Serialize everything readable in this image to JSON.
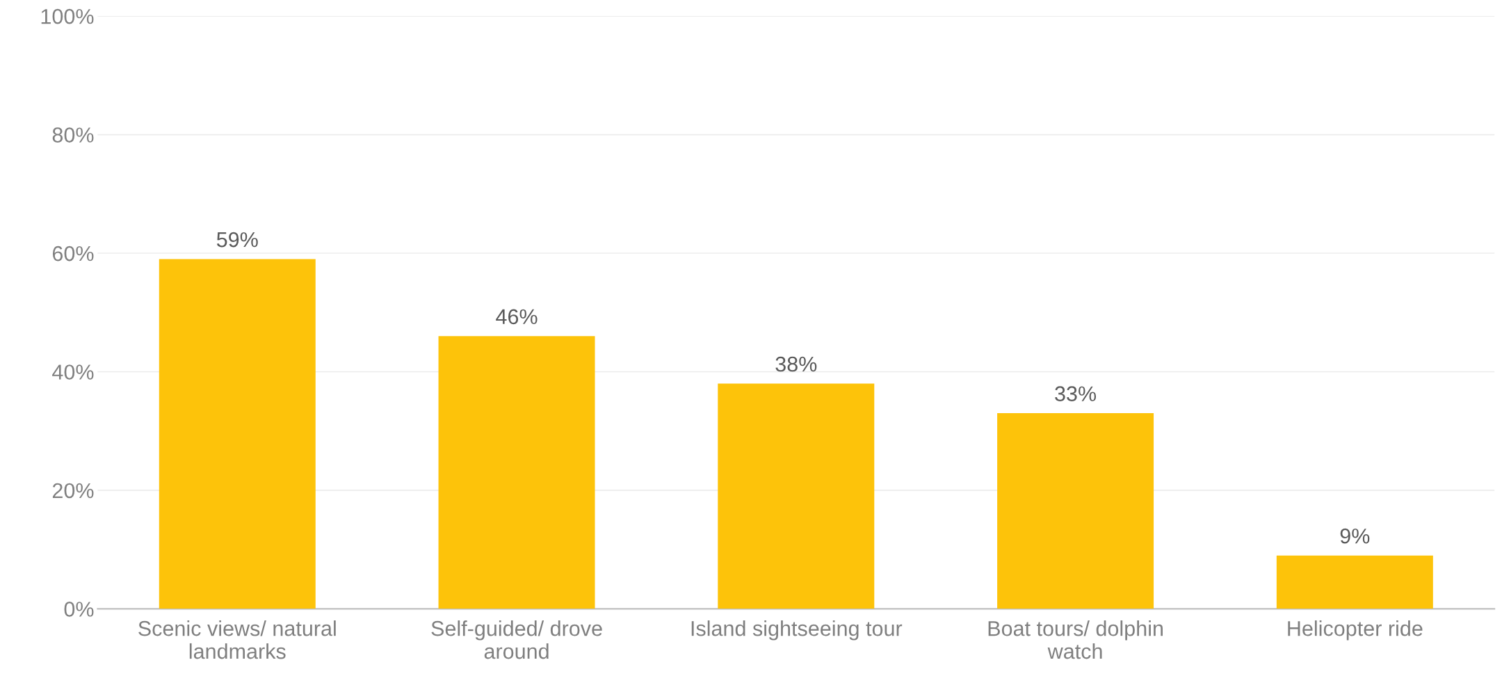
{
  "chart_data": {
    "type": "bar",
    "categories": [
      "Scenic views/ natural\nlandmarks",
      "Self-guided/ drove\naround",
      "Island sightseeing tour",
      "Boat tours/ dolphin\nwatch",
      "Helicopter ride"
    ],
    "values": [
      59,
      46,
      38,
      33,
      9
    ],
    "value_labels": [
      "59%",
      "46%",
      "38%",
      "33%",
      "9%"
    ],
    "color": "#fdc30a",
    "ylim": [
      0,
      100
    ],
    "yticks": [
      {
        "value": 0,
        "label": "0%"
      },
      {
        "value": 20,
        "label": "20%"
      },
      {
        "value": 40,
        "label": "40%"
      },
      {
        "value": 60,
        "label": "60%"
      },
      {
        "value": 80,
        "label": "80%"
      },
      {
        "value": 100,
        "label": "100%"
      }
    ],
    "grid": "y",
    "legend": false
  }
}
